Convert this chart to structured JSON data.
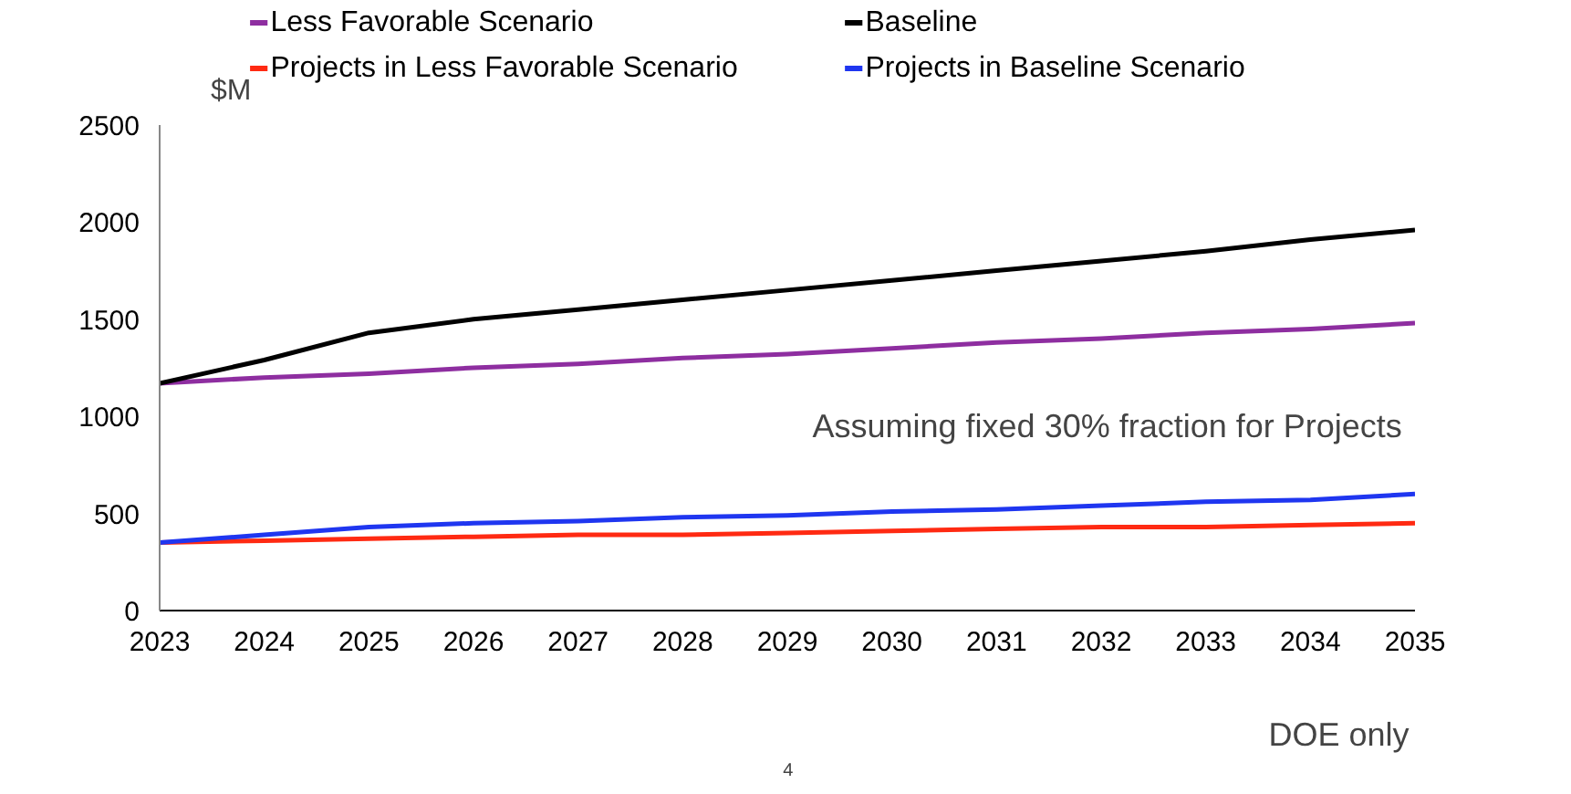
{
  "chart_data": {
    "type": "line",
    "ylabel": "$M",
    "x": [
      2023,
      2024,
      2025,
      2026,
      2027,
      2028,
      2029,
      2030,
      2031,
      2032,
      2033,
      2034,
      2035
    ],
    "series": [
      {
        "name": "Less Favorable Scenario",
        "color": "#8e2ea0",
        "values": [
          1170,
          1200,
          1220,
          1250,
          1270,
          1300,
          1320,
          1350,
          1380,
          1400,
          1430,
          1450,
          1480
        ]
      },
      {
        "name": "Baseline",
        "color": "#000000",
        "values": [
          1170,
          1290,
          1430,
          1500,
          1550,
          1600,
          1650,
          1700,
          1750,
          1800,
          1850,
          1910,
          1960
        ]
      },
      {
        "name": "Projects in Less Favorable Scenario",
        "color": "#ff2a12",
        "values": [
          350,
          360,
          370,
          380,
          390,
          390,
          400,
          410,
          420,
          430,
          430,
          440,
          450
        ]
      },
      {
        "name": "Projects in Baseline Scenario",
        "color": "#1f36f0",
        "values": [
          350,
          390,
          430,
          450,
          460,
          480,
          490,
          510,
          520,
          540,
          560,
          570,
          600
        ]
      }
    ],
    "xlim": [
      2023,
      2035
    ],
    "xticks": [
      2023,
      2024,
      2025,
      2026,
      2027,
      2028,
      2029,
      2030,
      2031,
      2032,
      2033,
      2034,
      2035
    ],
    "ylim": [
      0,
      2500
    ],
    "yticks": [
      0,
      500,
      1000,
      1500,
      2000,
      2500
    ],
    "grid": false,
    "legend": "top",
    "marker": "none",
    "line_style": "solid",
    "annotations": [
      "Assuming fixed 30% fraction for Projects",
      "DOE only",
      "4"
    ]
  }
}
